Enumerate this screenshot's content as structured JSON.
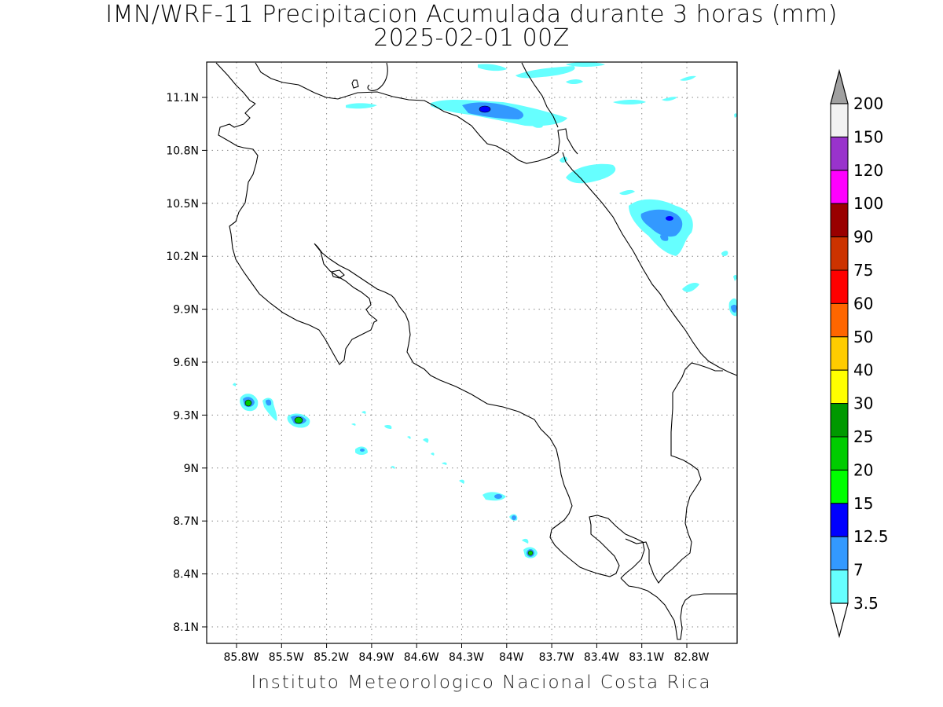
{
  "title": {
    "line1": "IMN/WRF-11 Precipitacion Acumulada durante 3 horas (mm)",
    "line2": "2025-02-01 00Z"
  },
  "footer": "Instituto Meteorologico Nacional Costa Rica",
  "map": {
    "lat_ticks": [
      "11.1N",
      "10.8N",
      "10.5N",
      "10.2N",
      "9.9N",
      "9.6N",
      "9.3N",
      "9N",
      "8.7N",
      "8.4N",
      "8.1N"
    ],
    "lon_ticks": [
      "85.8W",
      "85.5W",
      "85.2W",
      "84.9W",
      "84.6W",
      "84.3W",
      "84W",
      "83.7W",
      "83.4W",
      "83.1W",
      "82.8W"
    ],
    "grid": "dotted"
  },
  "colorbar": {
    "levels": [
      "200",
      "150",
      "120",
      "100",
      "90",
      "75",
      "60",
      "50",
      "40",
      "30",
      "25",
      "20",
      "15",
      "12.5",
      "7",
      "3.5"
    ],
    "colors": [
      "#f2f2f2",
      "#9933cc",
      "#ff00ff",
      "#990000",
      "#cc3300",
      "#ff0000",
      "#ff6600",
      "#ffcc00",
      "#ffff00",
      "#009900",
      "#00cc00",
      "#00ff00",
      "#0000ff",
      "#3399ff",
      "#66ffff"
    ],
    "over_color": "#a0a0a0",
    "under_color": "#ffffff"
  }
}
